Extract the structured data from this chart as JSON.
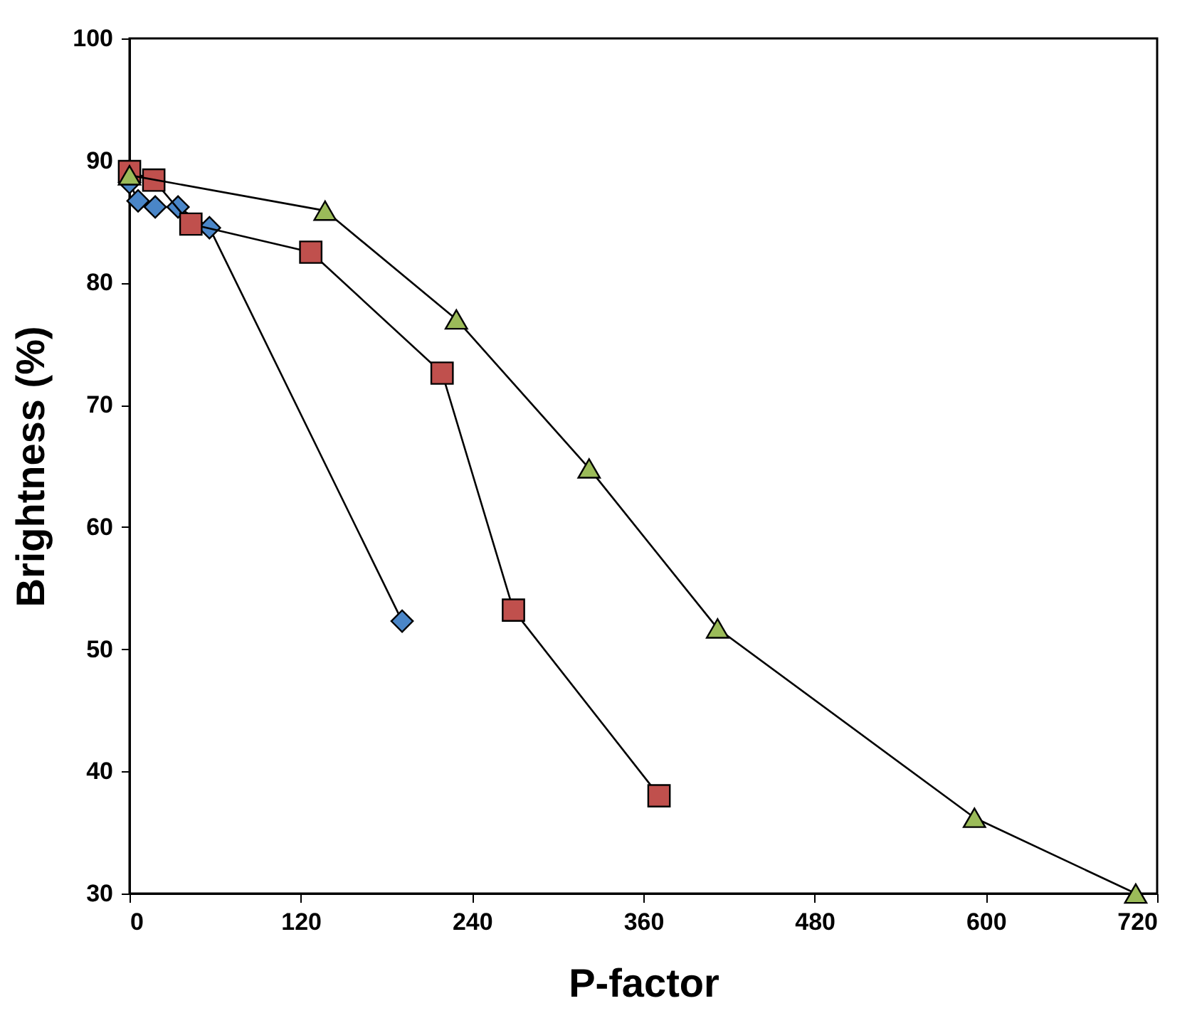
{
  "chart_data": {
    "type": "line",
    "xlabel": "P-factor",
    "ylabel": "Brightness (%)",
    "xlim": [
      0,
      720
    ],
    "xticks": [
      0,
      120,
      240,
      360,
      480,
      600,
      720
    ],
    "ylim": [
      30,
      100
    ],
    "yticks": [
      30,
      40,
      50,
      60,
      70,
      80,
      90,
      100
    ],
    "grid": false,
    "series": [
      {
        "color": "#4a86c8",
        "marker": "diamond",
        "x": [
          0,
          6,
          18,
          34,
          56,
          191
        ],
        "values": [
          88.2,
          86.7,
          86.2,
          86.2,
          84.5,
          52.3
        ]
      },
      {
        "color": "#c0504d",
        "marker": "square",
        "x": [
          0,
          17,
          43,
          127,
          219,
          269,
          371
        ],
        "values": [
          89.1,
          88.4,
          84.8,
          82.5,
          72.6,
          53.2,
          38.0
        ]
      },
      {
        "color": "#9bbb59",
        "marker": "triangle",
        "x": [
          0,
          137,
          229,
          322,
          412,
          592,
          705
        ],
        "values": [
          88.8,
          85.9,
          77.0,
          64.8,
          51.7,
          36.2,
          30.0
        ]
      }
    ]
  }
}
